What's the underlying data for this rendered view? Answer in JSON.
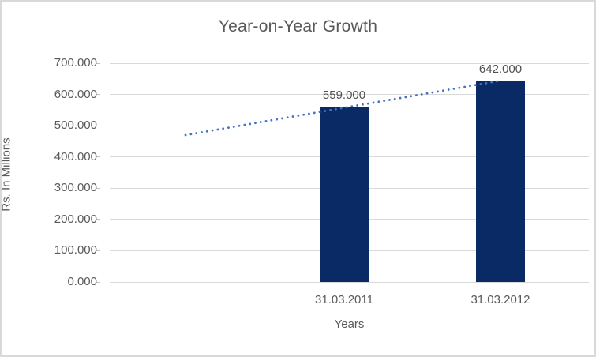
{
  "chart": {
    "title": "Year-on-Year Growth",
    "x_axis_title": "Years",
    "y_axis_title": "Rs. In Millions"
  },
  "chart_data": {
    "type": "bar",
    "title": "Year-on-Year Growth",
    "xlabel": "Years",
    "ylabel": "Rs. In Millions",
    "categories": [
      "31.03.2011",
      "31.03.2012"
    ],
    "values": [
      559,
      642
    ],
    "data_labels": [
      "559.000",
      "642.000"
    ],
    "ylim": [
      0,
      700
    ],
    "ytick_step": 100,
    "ytick_labels": [
      "0.000",
      "100.000",
      "200.000",
      "300.000",
      "400.000",
      "500.000",
      "600.000",
      "700.000"
    ],
    "grid": true,
    "legend": "none",
    "colors": {
      "bar": "#0A2A66",
      "trendline": "#4472C4",
      "gridline": "#D9D9D9",
      "text": "#595959"
    },
    "trendline": {
      "type": "linear",
      "style": "dotted",
      "color": "#4472C4",
      "start_value": 470,
      "end_value": 643
    }
  }
}
